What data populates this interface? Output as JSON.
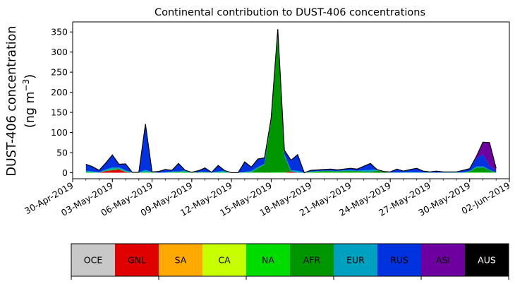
{
  "chart_data": {
    "type": "area",
    "stacked": true,
    "title": "Continental contribution to DUST-406 concentrations",
    "ylabel_line1": "DUST-406 concentration",
    "ylabel_line2_prefix": "(ng m",
    "ylabel_line2_sup": "−3",
    "ylabel_line2_suffix": ")",
    "ylim": [
      -15,
      375
    ],
    "yticks": [
      0,
      50,
      100,
      150,
      200,
      250,
      300,
      350
    ],
    "xlim": [
      "2019-04-30",
      "2019-06-02"
    ],
    "xticks": [
      {
        "date": "2019-04-30",
        "label": "30-Apr-2019"
      },
      {
        "date": "2019-05-03",
        "label": "03-May-2019"
      },
      {
        "date": "2019-05-06",
        "label": "06-May-2019"
      },
      {
        "date": "2019-05-09",
        "label": "09-May-2019"
      },
      {
        "date": "2019-05-12",
        "label": "12-May-2019"
      },
      {
        "date": "2019-05-15",
        "label": "15-May-2019"
      },
      {
        "date": "2019-05-18",
        "label": "18-May-2019"
      },
      {
        "date": "2019-05-21",
        "label": "21-May-2019"
      },
      {
        "date": "2019-05-24",
        "label": "24-May-2019"
      },
      {
        "date": "2019-05-27",
        "label": "27-May-2019"
      },
      {
        "date": "2019-05-30",
        "label": "30-May-2019"
      },
      {
        "date": "2019-06-02",
        "label": "02-Jun-2019"
      }
    ],
    "x": [
      "2019-05-01T00:00",
      "2019-05-01T12:00",
      "2019-05-02T00:00",
      "2019-05-02T12:00",
      "2019-05-03T00:00",
      "2019-05-03T12:00",
      "2019-05-04T00:00",
      "2019-05-04T12:00",
      "2019-05-05T00:00",
      "2019-05-05T12:00",
      "2019-05-06T00:00",
      "2019-05-06T12:00",
      "2019-05-07T00:00",
      "2019-05-07T12:00",
      "2019-05-08T00:00",
      "2019-05-08T12:00",
      "2019-05-09T00:00",
      "2019-05-09T12:00",
      "2019-05-10T00:00",
      "2019-05-10T12:00",
      "2019-05-11T00:00",
      "2019-05-11T12:00",
      "2019-05-12T00:00",
      "2019-05-12T12:00",
      "2019-05-13T00:00",
      "2019-05-13T12:00",
      "2019-05-14T00:00",
      "2019-05-14T12:00",
      "2019-05-15T00:00",
      "2019-05-15T12:00",
      "2019-05-16T00:00",
      "2019-05-16T12:00",
      "2019-05-17T00:00",
      "2019-05-17T12:00",
      "2019-05-18T00:00",
      "2019-05-18T12:00",
      "2019-05-19T00:00",
      "2019-05-19T12:00",
      "2019-05-20T00:00",
      "2019-05-20T12:00",
      "2019-05-21T00:00",
      "2019-05-21T12:00",
      "2019-05-22T00:00",
      "2019-05-22T12:00",
      "2019-05-23T00:00",
      "2019-05-23T12:00",
      "2019-05-24T00:00",
      "2019-05-24T12:00",
      "2019-05-25T00:00",
      "2019-05-25T12:00",
      "2019-05-26T00:00",
      "2019-05-26T12:00",
      "2019-05-27T00:00",
      "2019-05-27T12:00",
      "2019-05-28T00:00",
      "2019-05-28T12:00",
      "2019-05-29T00:00",
      "2019-05-29T12:00",
      "2019-05-30T00:00",
      "2019-05-30T12:00",
      "2019-05-31T00:00",
      "2019-05-31T12:00",
      "2019-06-01T00:00"
    ],
    "series": [
      {
        "name": "OCE",
        "color": "#c8c8c8",
        "values": [
          0,
          0,
          0,
          0,
          0,
          0,
          0,
          0,
          0,
          0,
          0,
          0,
          0,
          0,
          0,
          0,
          0,
          0,
          0,
          0,
          0,
          0,
          0,
          0,
          0,
          0,
          0,
          0,
          0,
          0,
          0,
          0,
          0,
          0,
          0,
          0,
          0,
          0,
          0,
          0,
          0,
          0,
          0,
          0,
          0,
          0,
          0,
          0,
          0,
          0,
          0,
          0,
          0,
          0,
          0,
          0,
          0,
          0,
          0,
          0,
          0,
          0,
          0
        ]
      },
      {
        "name": "GNL",
        "color": "#e00000",
        "values": [
          0,
          0,
          0,
          4,
          6,
          8,
          2,
          0,
          0,
          0,
          0,
          0,
          0,
          0,
          0,
          0,
          0,
          0,
          0,
          0,
          0,
          0,
          0,
          0,
          0,
          0,
          0,
          0,
          0,
          0,
          0,
          3,
          0,
          0,
          0,
          0,
          0,
          0,
          0,
          0,
          0,
          0,
          0,
          0,
          0,
          0,
          0,
          0,
          0,
          0,
          0,
          0,
          0,
          0,
          0,
          0,
          0,
          0,
          0,
          0,
          0,
          0,
          0
        ]
      },
      {
        "name": "SA",
        "color": "#ffaa00",
        "values": [
          0,
          0,
          0,
          0,
          0,
          0,
          0,
          0,
          0,
          0,
          0,
          0,
          0,
          0,
          0,
          0,
          0,
          0,
          0,
          0,
          0,
          0,
          0,
          0,
          0,
          0,
          0,
          0,
          0,
          0,
          0,
          0,
          0,
          0,
          0,
          0,
          0,
          0,
          0,
          0,
          0,
          0,
          0,
          0,
          0,
          0,
          0,
          0,
          0,
          0,
          0,
          0,
          0,
          0,
          0,
          0,
          0,
          0,
          0,
          0,
          0,
          0,
          0
        ]
      },
      {
        "name": "CA",
        "color": "#c8ff00",
        "values": [
          0,
          0,
          0,
          0,
          0,
          0,
          0,
          0,
          0,
          0,
          0,
          0,
          0,
          0,
          0,
          0,
          0,
          0,
          0,
          0,
          0,
          0,
          0,
          0,
          0,
          0,
          0,
          0,
          0,
          0,
          0,
          0,
          0,
          0,
          0,
          0,
          0,
          0,
          0,
          0,
          0,
          0,
          0,
          0,
          0,
          0,
          0,
          0,
          0,
          0,
          0,
          0,
          0,
          0,
          0,
          0,
          0,
          0,
          0,
          0,
          0,
          0,
          0
        ]
      },
      {
        "name": "NA",
        "color": "#00dc00",
        "values": [
          2,
          1,
          0,
          1,
          2,
          1,
          1,
          0,
          0,
          2,
          1,
          0,
          0,
          1,
          1,
          2,
          0,
          0,
          1,
          0,
          1,
          1,
          0,
          0,
          1,
          1,
          1,
          0,
          1,
          2,
          1,
          0,
          0,
          0,
          1,
          1,
          1,
          1,
          1,
          1,
          1,
          1,
          1,
          0,
          0,
          0,
          0,
          0,
          0,
          0,
          0,
          0,
          0,
          0,
          0,
          0,
          0,
          0,
          1,
          2,
          1,
          1,
          0
        ]
      },
      {
        "name": "AFR",
        "color": "#009600",
        "values": [
          0,
          0,
          0,
          0,
          0,
          1,
          0,
          0,
          0,
          0,
          0,
          0,
          0,
          0,
          1,
          0,
          0,
          1,
          0,
          0,
          0,
          0,
          0,
          0,
          0,
          0,
          10,
          20,
          130,
          340,
          40,
          0,
          0,
          0,
          1,
          2,
          3,
          3,
          2,
          3,
          3,
          3,
          2,
          2,
          5,
          2,
          0,
          0,
          0,
          0,
          0,
          0,
          0,
          0,
          0,
          0,
          0,
          0,
          2,
          10,
          12,
          5,
          0
        ]
      },
      {
        "name": "EUR",
        "color": "#00a0c0",
        "values": [
          3,
          2,
          1,
          3,
          5,
          3,
          3,
          1,
          1,
          5,
          1,
          0,
          1,
          2,
          1,
          4,
          1,
          1,
          1,
          1,
          2,
          4,
          0,
          0,
          1,
          3,
          3,
          2,
          5,
          5,
          5,
          3,
          5,
          0,
          1,
          1,
          1,
          1,
          1,
          2,
          2,
          1,
          3,
          5,
          3,
          1,
          1,
          1,
          1,
          2,
          1,
          1,
          1,
          0,
          1,
          1,
          1,
          1,
          1,
          3,
          3,
          1,
          1
        ]
      },
      {
        "name": "RUS",
        "color": "#0032e0",
        "values": [
          16,
          12,
          5,
          15,
          30,
          7,
          15,
          0,
          0,
          113,
          0,
          3,
          7,
          3,
          20,
          0,
          0,
          3,
          10,
          0,
          15,
          0,
          0,
          0,
          25,
          10,
          20,
          15,
          0,
          0,
          10,
          25,
          40,
          0,
          3,
          3,
          3,
          4,
          3,
          3,
          5,
          3,
          10,
          15,
          0,
          0,
          1,
          8,
          3,
          6,
          10,
          3,
          1,
          4,
          1,
          1,
          1,
          5,
          6,
          20,
          30,
          10,
          5
        ]
      },
      {
        "name": "ASI",
        "color": "#6e00a0",
        "values": [
          0,
          0,
          0,
          1,
          1,
          1,
          1,
          0,
          0,
          1,
          0,
          0,
          0,
          0,
          0,
          0,
          0,
          0,
          0,
          0,
          0,
          0,
          0,
          0,
          0,
          0,
          0,
          0,
          0,
          10,
          0,
          0,
          0,
          0,
          0,
          0,
          0,
          0,
          0,
          0,
          0,
          1,
          0,
          1,
          0,
          0,
          0,
          0,
          0,
          0,
          0,
          0,
          0,
          0,
          0,
          0,
          0,
          0,
          0,
          5,
          30,
          58,
          5
        ]
      },
      {
        "name": "AUS",
        "color": "#000000",
        "values": [
          0,
          0,
          0,
          0,
          0,
          0,
          0,
          0,
          0,
          0,
          0,
          0,
          0,
          0,
          0,
          0,
          0,
          0,
          0,
          0,
          0,
          0,
          0,
          0,
          0,
          0,
          0,
          0,
          0,
          0,
          0,
          0,
          0,
          0,
          0,
          0,
          0,
          0,
          0,
          0,
          0,
          0,
          0,
          0,
          0,
          0,
          0,
          0,
          0,
          0,
          0,
          0,
          0,
          0,
          0,
          0,
          0,
          0,
          0,
          0,
          0,
          0,
          0
        ]
      }
    ]
  }
}
